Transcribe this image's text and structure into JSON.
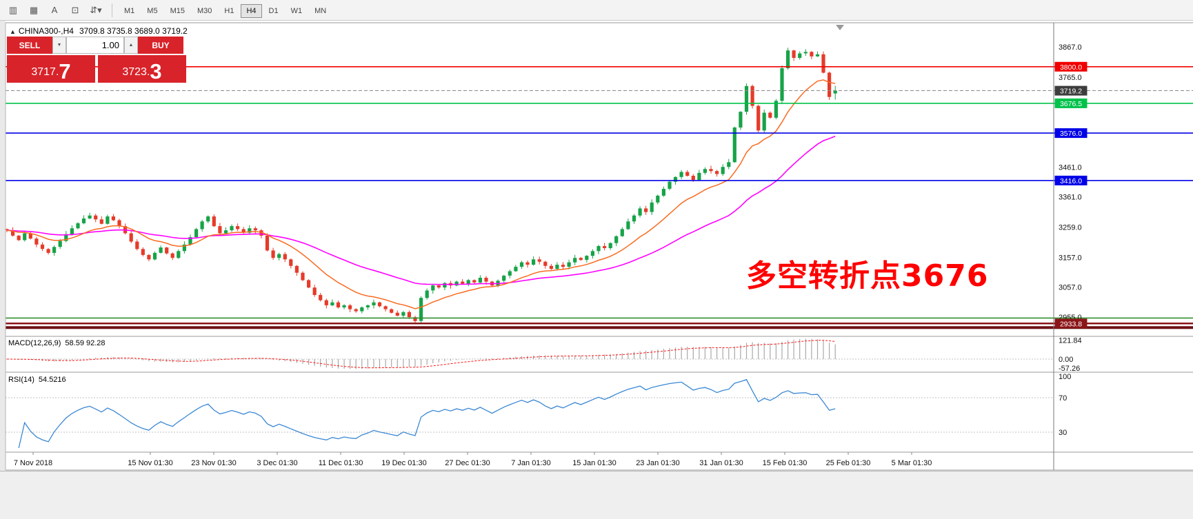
{
  "toolbar": {
    "icons": [
      {
        "name": "chart-window-icon",
        "glyph": "▥"
      },
      {
        "name": "tile-windows-icon",
        "glyph": "▦"
      },
      {
        "name": "text-label-tool-icon",
        "glyph": "A"
      },
      {
        "name": "frame-object-tool-icon",
        "glyph": "⊡"
      },
      {
        "name": "cycle-lines-tool-icon",
        "glyph": "⇵▾"
      }
    ],
    "timeframes": [
      "M1",
      "M5",
      "M15",
      "M30",
      "H1",
      "H4",
      "D1",
      "W1",
      "MN"
    ],
    "active_timeframe": "H4"
  },
  "chart": {
    "header_arrow": "▲",
    "symbol_header": "CHINA300-,H4",
    "ohlc_text": "3709.8 3735.8 3689.0 3719.2",
    "annotation": "多空转折点3676",
    "trade_panel": {
      "sell_label": "SELL",
      "buy_label": "BUY",
      "volume": "1.00",
      "dropdown_glyph": "▼",
      "stepper_glyph": "▲",
      "sell_price_head": "3717.",
      "sell_price_big": "7",
      "buy_price_head": "3723.",
      "buy_price_big": "3"
    },
    "price_axis": {
      "ticks": [
        "3867.0",
        "3765.0",
        "3461.0",
        "3361.0",
        "3259.0",
        "3157.0",
        "3057.0",
        "2955.0"
      ]
    },
    "current_price": {
      "value": 3719.2,
      "label": "3719.2"
    },
    "levels": [
      {
        "price": 3800.0,
        "label": "3800.0",
        "color": "#f00000",
        "width": 1.6
      },
      {
        "price": 3676.5,
        "label": "3676.5",
        "color": "#00c24a",
        "width": 1.6
      },
      {
        "price": 3576.0,
        "label": "3576.0",
        "color": "#0000e8",
        "width": 1.6
      },
      {
        "price": 3416.0,
        "label": "3416.0",
        "color": "#0000e8",
        "width": 1.6
      },
      {
        "price": 2952.0,
        "label": "",
        "color": "#2f8f2f",
        "width": 1.6
      },
      {
        "price": 2933.8,
        "label": "2933.8",
        "color": "#8b1518",
        "width": 2.5
      },
      {
        "price": 2920.0,
        "label": "",
        "color": "#6d1113",
        "width": 4
      }
    ],
    "chart_data": {
      "type": "candlestick",
      "symbol": "CHINA300-",
      "timeframe": "H4",
      "last_ohlc": {
        "open": 3709.8,
        "high": 3735.8,
        "low": 3689.0,
        "close": 3719.2
      },
      "closes": [
        3248,
        3230,
        3215,
        3238,
        3220,
        3200,
        3185,
        3172,
        3192,
        3212,
        3235,
        3255,
        3272,
        3288,
        3298,
        3285,
        3270,
        3295,
        3282,
        3262,
        3238,
        3210,
        3185,
        3165,
        3150,
        3172,
        3190,
        3170,
        3155,
        3178,
        3200,
        3225,
        3252,
        3278,
        3295,
        3262,
        3238,
        3248,
        3262,
        3252,
        3240,
        3255,
        3248,
        3230,
        3180,
        3155,
        3168,
        3150,
        3128,
        3105,
        3080,
        3055,
        3030,
        3012,
        2995,
        3005,
        2988,
        2995,
        2982,
        2975,
        2988,
        2995,
        3005,
        2992,
        2982,
        2970,
        2960,
        2972,
        2955,
        2942,
        3020,
        3045,
        3062,
        3055,
        3070,
        3062,
        3075,
        3068,
        3080,
        3072,
        3088,
        3075,
        3062,
        3078,
        3095,
        3110,
        3125,
        3140,
        3132,
        3150,
        3142,
        3128,
        3118,
        3132,
        3125,
        3140,
        3155,
        3148,
        3162,
        3178,
        3195,
        3188,
        3205,
        3228,
        3252,
        3278,
        3298,
        3322,
        3310,
        3342,
        3365,
        3388,
        3412,
        3428,
        3445,
        3432,
        3418,
        3442,
        3455,
        3448,
        3438,
        3462,
        3478,
        3595,
        3648,
        3735,
        3668,
        3585,
        3645,
        3628,
        3685,
        3795,
        3855,
        3830,
        3845,
        3850,
        3835,
        3842,
        3780,
        3698,
        3719.2
      ],
      "overlays": [
        {
          "name": "ma-fast",
          "type": "ema",
          "period": 13,
          "color": "#f96a1f"
        },
        {
          "name": "ma-slow",
          "type": "ema",
          "period": 40,
          "color": "#ff00ff"
        }
      ],
      "y_range_hint": [
        2920,
        3920
      ],
      "legend_position": "none",
      "grid": false
    }
  },
  "macd": {
    "label": "MACD(12,26,9)",
    "values": "58.59 92.28",
    "params": [
      12,
      26,
      9
    ],
    "axis": [
      "121.84",
      "0.00",
      "-57.26"
    ]
  },
  "rsi": {
    "label": "RSI(14)",
    "value": "54.5216",
    "period": 14,
    "levels": [
      70,
      30
    ],
    "axis": [
      "100",
      "70",
      "30"
    ]
  },
  "time_axis": {
    "labels": [
      "7 Nov 2018",
      "15 Nov 01:30",
      "23 Nov 01:30",
      "3 Dec 01:30",
      "11 Dec 01:30",
      "19 Dec 01:30",
      "27 Dec 01:30",
      "7 Jan 01:30",
      "15 Jan 01:30",
      "23 Jan 01:30",
      "31 Jan 01:30",
      "15 Feb 01:30",
      "25 Feb 01:30",
      "5 Mar 01:30"
    ]
  },
  "colors": {
    "up": "#17a348",
    "down": "#e53b2a",
    "ma_fast": "#f96a1f",
    "ma_slow": "#ff00ff",
    "rsi_line": "#3a87d4",
    "macd_hist": "#a8a8a8",
    "macd_signal": "#ff1414",
    "current_price_box": "#3d3d3d",
    "annotation": "#ff0000",
    "sell_buy_red": "#d8232a",
    "axis_text": "#111111",
    "separator": "#9a9a9a"
  }
}
